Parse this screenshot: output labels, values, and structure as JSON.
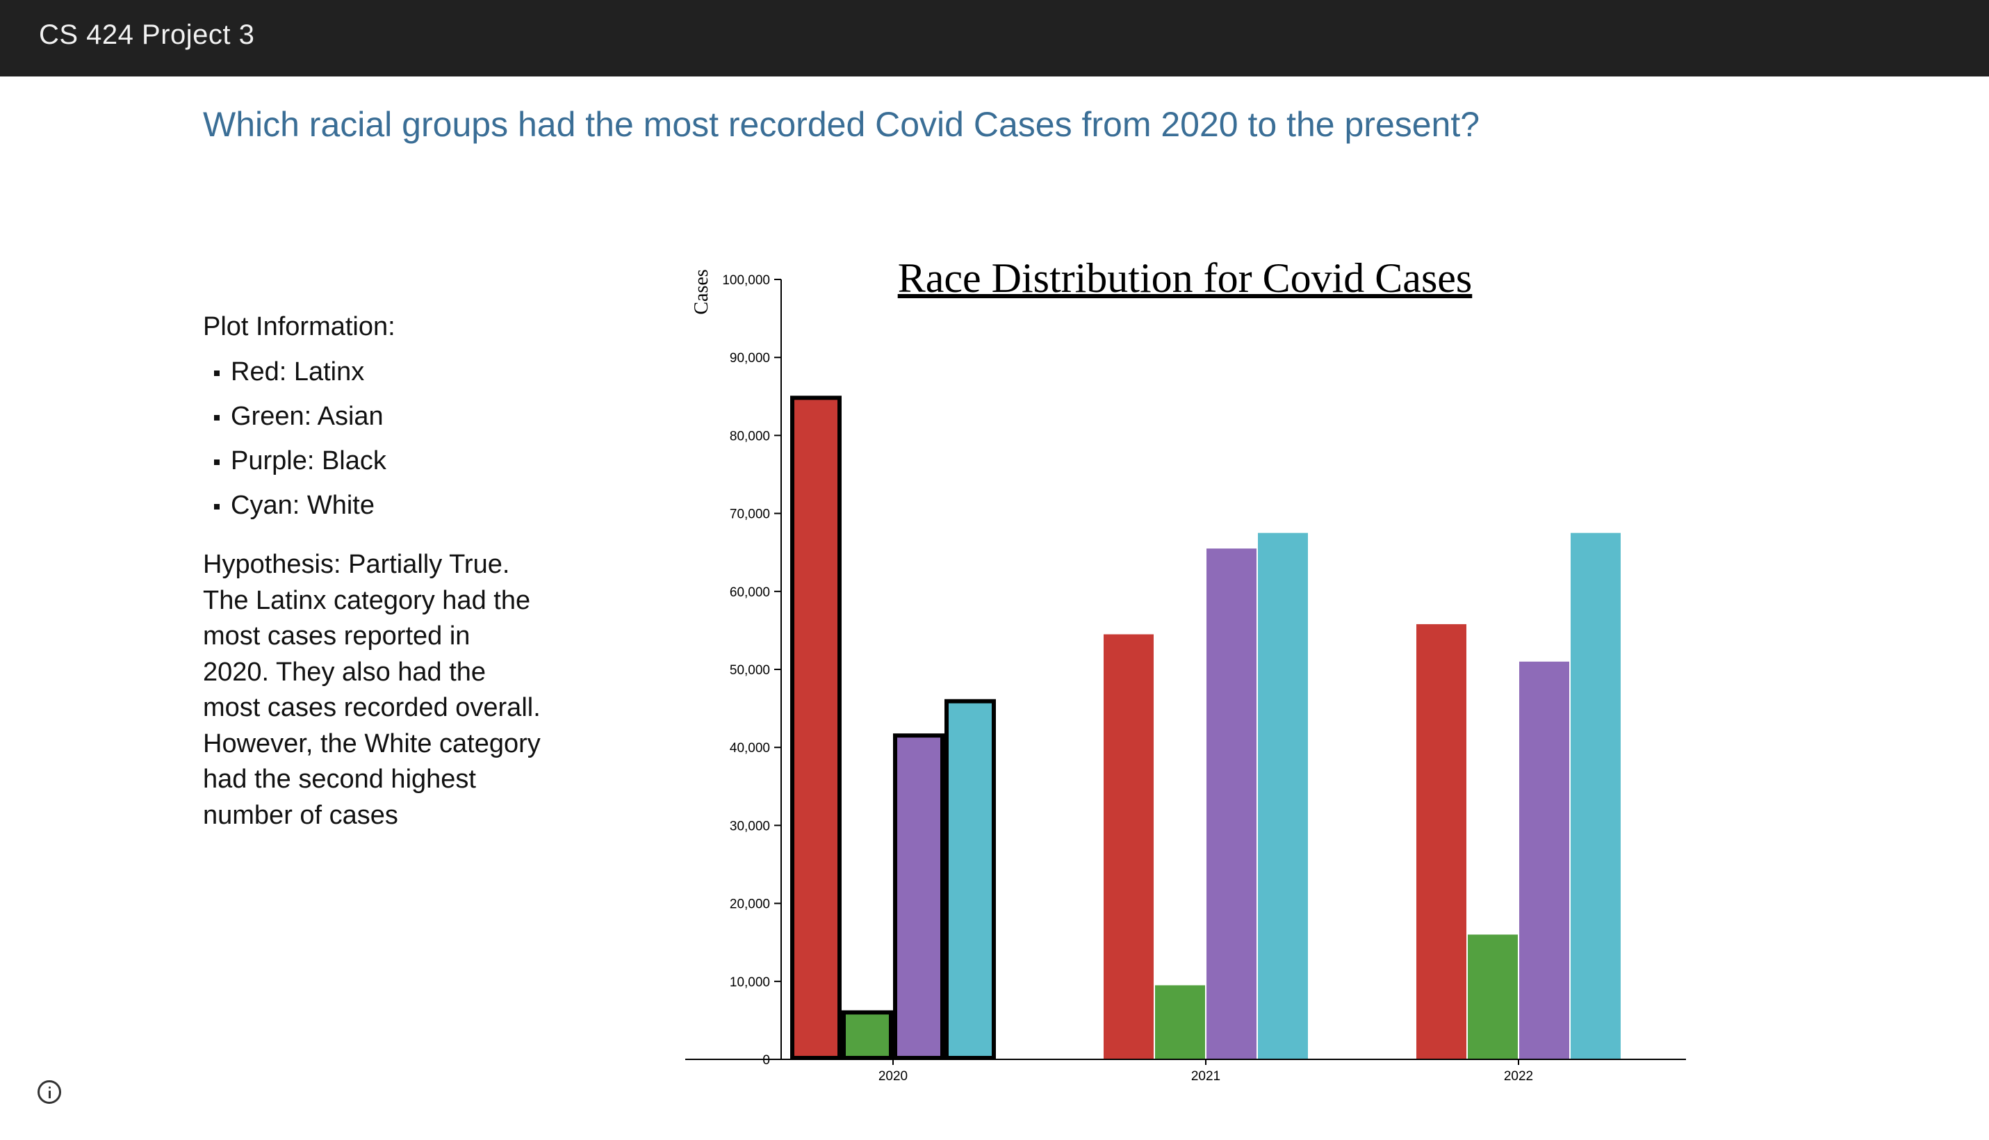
{
  "header": {
    "title": "CS 424 Project 3"
  },
  "question": "Which racial groups had the most recorded Covid Cases from 2020 to the present?",
  "plot_info": {
    "heading": "Plot Information:",
    "legend": [
      {
        "label": "Red: Latinx"
      },
      {
        "label": "Green: Asian"
      },
      {
        "label": "Purple: Black"
      },
      {
        "label": "Cyan: White"
      }
    ],
    "hypothesis": "Hypothesis:  Partially True.  The Latinx category had the most cases reported in 2020.  They also had the most cases recorded overall.  However, the White category had the second highest number of cases"
  },
  "colors": {
    "latinx": "#c83a34",
    "asian": "#53a140",
    "black": "#8e6bb8",
    "white": "#5bbccc",
    "highlight_stroke": "#000000"
  },
  "icons": {
    "info": "info-circle-icon"
  },
  "chart_data": {
    "type": "bar",
    "title": "Race Distribution for Covid Cases",
    "ylabel": "Cases",
    "xlabel": "",
    "ylim": [
      0,
      100000
    ],
    "yticks": [
      0,
      10000,
      20000,
      30000,
      40000,
      50000,
      60000,
      70000,
      80000,
      90000,
      100000
    ],
    "ytick_labels": [
      "0",
      "10,000",
      "20,000",
      "30,000",
      "40,000",
      "50,000",
      "60,000",
      "70,000",
      "80,000",
      "90,000",
      "100,000"
    ],
    "categories": [
      "2020",
      "2021",
      "2022"
    ],
    "highlighted_category": "2020",
    "grid": false,
    "series": [
      {
        "key": "latinx",
        "values": [
          85000,
          54500,
          55800
        ]
      },
      {
        "key": "asian",
        "values": [
          6200,
          9500,
          16000
        ]
      },
      {
        "key": "black",
        "values": [
          41700,
          65500,
          51000
        ]
      },
      {
        "key": "white",
        "values": [
          46100,
          67500,
          67500
        ]
      }
    ]
  }
}
